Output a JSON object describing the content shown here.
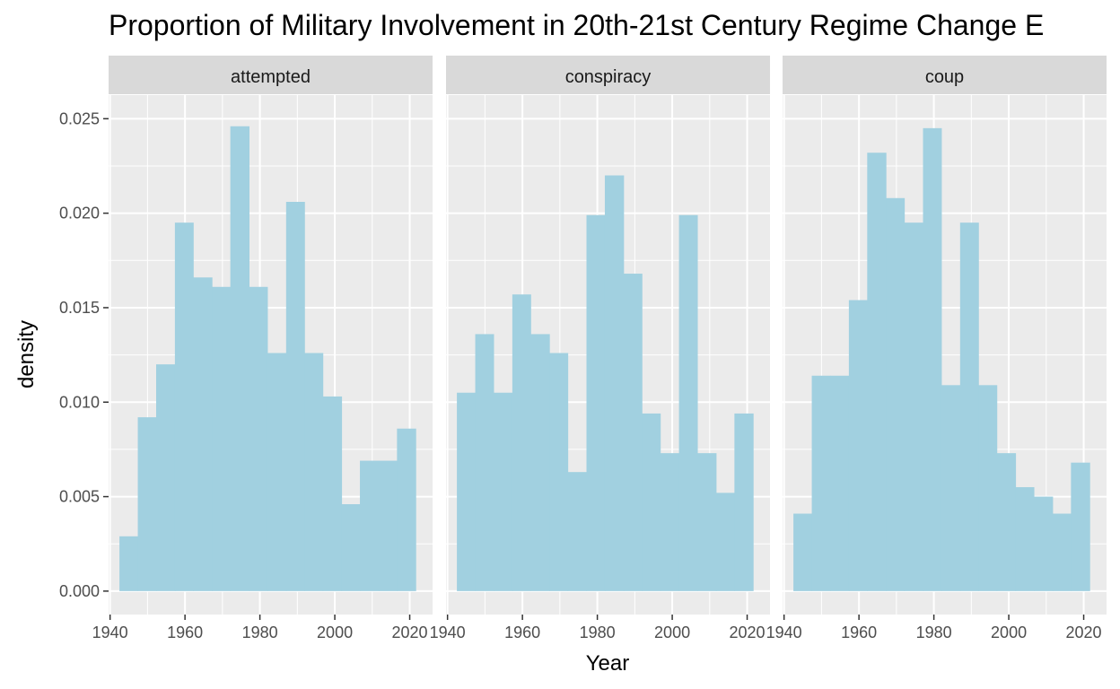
{
  "chart_data": {
    "type": "bar",
    "title": "Proportion of Military Involvement in 20th-21st Century Regime Change E",
    "xlabel": "Year",
    "ylabel": "density",
    "xlim": [
      1939.6,
      2026.1
    ],
    "ylim": [
      -0.00124,
      0.02625
    ],
    "x_ticks": [
      1940,
      1960,
      1980,
      2000,
      2020
    ],
    "x_tick_labels": [
      "1940",
      "1960",
      "1980",
      "2000",
      "2020"
    ],
    "y_ticks": [
      0,
      0.005,
      0.01,
      0.015,
      0.02,
      0.025
    ],
    "y_tick_labels": [
      "0.000",
      "0.005",
      "0.010",
      "0.015",
      "0.020",
      "0.025"
    ],
    "bin_edges": [
      1942.5,
      1947.4,
      1952.3,
      1957.3,
      1962.2,
      1967.2,
      1972.1,
      1977.1,
      1982.0,
      1987.0,
      1991.9,
      1996.8,
      2001.8,
      2006.7,
      2011.7,
      2016.6,
      2021.6
    ],
    "bar_color": "#a1d0e0",
    "panel_background": "#ebebeb",
    "grid": true,
    "facets": [
      {
        "label": "attempted",
        "values": [
          0.0029,
          0.0092,
          0.012,
          0.0195,
          0.0166,
          0.0161,
          0.0246,
          0.0161,
          0.0126,
          0.0206,
          0.0126,
          0.0103,
          0.0046,
          0.0069,
          0.0069,
          0.0086
        ]
      },
      {
        "label": "conspiracy",
        "values": [
          0.0105,
          0.0136,
          0.0105,
          0.0157,
          0.0136,
          0.0126,
          0.0063,
          0.0199,
          0.022,
          0.0168,
          0.0094,
          0.0073,
          0.0199,
          0.0073,
          0.0052,
          0.0094
        ]
      },
      {
        "label": "coup",
        "values": [
          0.0041,
          0.0114,
          0.0114,
          0.0154,
          0.0232,
          0.0208,
          0.0195,
          0.0245,
          0.0109,
          0.0195,
          0.0109,
          0.0073,
          0.0055,
          0.005,
          0.0041,
          0.0068
        ]
      }
    ]
  }
}
